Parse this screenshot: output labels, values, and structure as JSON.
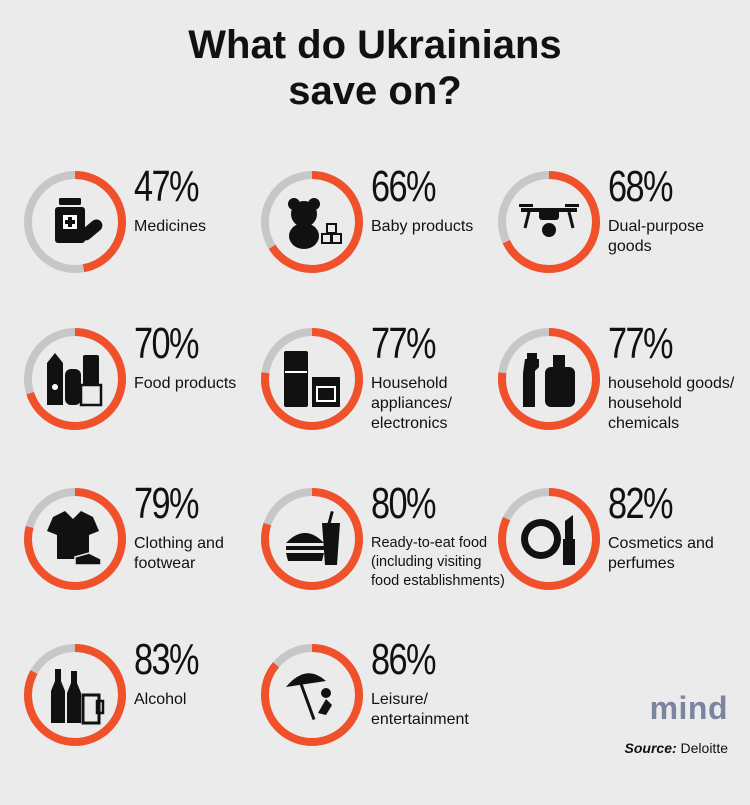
{
  "title_lines": [
    "What do Ukrainians",
    "save on?"
  ],
  "colors": {
    "accent": "#f0502a",
    "track": "#c7c7c7",
    "background": "#ebebeb",
    "logo": "#7b84a1"
  },
  "chart_data": {
    "type": "donut-grid",
    "title": "What do Ukrainians save on?",
    "unit": "%",
    "items": [
      {
        "category": "Medicines",
        "value": 47,
        "value_label": "47%",
        "icon": "medicine-bottle-pills-icon"
      },
      {
        "category": "Baby products",
        "value": 66,
        "value_label": "66%",
        "icon": "teddy-bear-blocks-icon"
      },
      {
        "category": "Dual-purpose goods",
        "value": 68,
        "value_label": "68%",
        "icon": "drone-icon"
      },
      {
        "category": "Food products",
        "value": 70,
        "value_label": "70%",
        "icon": "grocery-icon"
      },
      {
        "category": "Household appliances/ electronics",
        "value": 77,
        "value_label": "77%",
        "icon": "fridge-stove-icon"
      },
      {
        "category": "household goods/ household chemicals",
        "value": 77,
        "value_label": "77%",
        "icon": "cleaning-bottles-icon"
      },
      {
        "category": "Clothing and footwear",
        "value": 79,
        "value_label": "79%",
        "icon": "shirt-shoe-icon"
      },
      {
        "category": "Ready-to-eat food (including visiting food establishments)",
        "value": 80,
        "value_label": "80%",
        "icon": "burger-drink-icon"
      },
      {
        "category": "Cosmetics and perfumes",
        "value": 82,
        "value_label": "82%",
        "icon": "compact-lipstick-icon"
      },
      {
        "category": "Alcohol",
        "value": 83,
        "value_label": "83%",
        "icon": "bottles-glass-icon"
      },
      {
        "category": "Leisure/ entertainment",
        "value": 86,
        "value_label": "86%",
        "icon": "beach-umbrella-icon"
      }
    ]
  },
  "logo": "mind",
  "source": {
    "label": "Source:",
    "value": "Deloitte"
  }
}
